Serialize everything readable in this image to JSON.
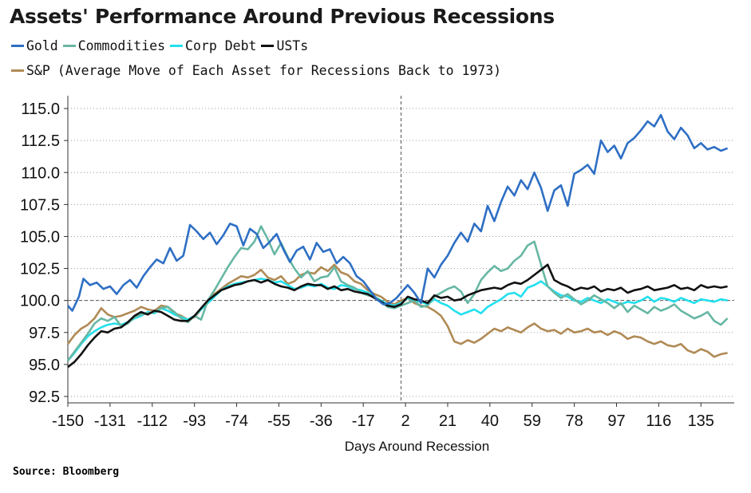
{
  "title": "Assets' Performance Around Previous Recessions",
  "source": "Source: Bloomberg",
  "legend_note": "(Average Move of Each Asset for Recessions Back to 1973)",
  "chart_data": {
    "type": "line",
    "title": "Assets' Performance Around Previous Recessions",
    "xlabel": "Days Around Recession",
    "ylabel": "",
    "xlim": [
      -150,
      150
    ],
    "ylim": [
      92.0,
      116.0
    ],
    "xticks": [
      -150,
      -131,
      -112,
      -93,
      -74,
      -55,
      -36,
      -17,
      2,
      21,
      40,
      59,
      78,
      97,
      116,
      135
    ],
    "yticks": [
      92.5,
      95.0,
      97.5,
      100.0,
      102.5,
      105.0,
      107.5,
      110.0,
      112.5,
      115.0
    ],
    "ytick_labels": [
      "92.5",
      "95.0",
      "97.5",
      "100.0",
      "102.5",
      "105.0",
      "107.5",
      "110.0",
      "112.5",
      "115.0"
    ],
    "reference_line_y": 100.0,
    "reference_line_x": 0,
    "grid": "horizontal dotted",
    "legend_position": "top-left",
    "series": [
      {
        "name": "Gold",
        "color": "#2e6fc4",
        "x": [
          -150,
          -148,
          -145,
          -143,
          -140,
          -137,
          -134,
          -131,
          -128,
          -125,
          -122,
          -119,
          -116,
          -113,
          -110,
          -107,
          -104,
          -101,
          -98,
          -95,
          -92,
          -89,
          -86,
          -83,
          -80,
          -77,
          -74,
          -71,
          -68,
          -65,
          -62,
          -59,
          -56,
          -53,
          -50,
          -47,
          -44,
          -41,
          -38,
          -35,
          -32,
          -29,
          -26,
          -23,
          -20,
          -17,
          -14,
          -11,
          -8,
          -5,
          -2,
          0,
          3,
          6,
          9,
          12,
          15,
          18,
          21,
          24,
          27,
          30,
          33,
          36,
          39,
          42,
          45,
          48,
          51,
          54,
          57,
          60,
          63,
          66,
          69,
          72,
          75,
          78,
          81,
          84,
          87,
          90,
          93,
          96,
          99,
          102,
          105,
          108,
          111,
          114,
          117,
          120,
          123,
          126,
          129,
          132,
          135,
          138,
          141,
          144,
          147
        ],
        "y": [
          99.6,
          99.2,
          100.3,
          101.7,
          101.2,
          101.4,
          100.9,
          101.1,
          100.5,
          101.2,
          101.6,
          101.0,
          101.9,
          102.6,
          103.2,
          102.9,
          104.1,
          103.1,
          103.5,
          105.9,
          105.4,
          104.8,
          105.3,
          104.4,
          105.1,
          106.0,
          105.8,
          104.3,
          105.6,
          105.2,
          104.1,
          104.6,
          105.2,
          104.0,
          103.0,
          103.9,
          104.2,
          103.2,
          104.5,
          103.8,
          104.0,
          102.9,
          103.4,
          102.9,
          101.9,
          101.5,
          100.8,
          100.1,
          99.7,
          99.8,
          100.2,
          100.6,
          101.2,
          100.6,
          99.8,
          102.5,
          101.8,
          102.8,
          103.5,
          104.5,
          105.3,
          104.6,
          106.0,
          105.4,
          107.4,
          106.2,
          107.7,
          108.9,
          108.2,
          109.4,
          108.7,
          110.0,
          108.8,
          107.0,
          108.6,
          109.0,
          107.4,
          109.9,
          110.2,
          110.6,
          109.9,
          112.5,
          111.6,
          112.1,
          111.1,
          112.3,
          112.7,
          113.3,
          114.0,
          113.6,
          114.5,
          113.2,
          112.6,
          113.5,
          112.9,
          111.9,
          112.3,
          111.8,
          112.0,
          111.7,
          111.9
        ]
      },
      {
        "name": "Commodities",
        "color": "#67b7a4",
        "x": [
          -150,
          -147,
          -144,
          -141,
          -138,
          -135,
          -132,
          -129,
          -126,
          -123,
          -120,
          -117,
          -114,
          -111,
          -108,
          -105,
          -102,
          -99,
          -96,
          -93,
          -90,
          -87,
          -84,
          -81,
          -78,
          -75,
          -72,
          -69,
          -66,
          -63,
          -60,
          -57,
          -54,
          -51,
          -48,
          -45,
          -42,
          -39,
          -36,
          -33,
          -30,
          -27,
          -24,
          -21,
          -18,
          -15,
          -12,
          -9,
          -6,
          -3,
          0,
          3,
          6,
          9,
          12,
          15,
          18,
          21,
          24,
          27,
          30,
          33,
          36,
          39,
          42,
          45,
          48,
          51,
          54,
          57,
          60,
          63,
          66,
          69,
          72,
          75,
          78,
          81,
          84,
          87,
          90,
          93,
          96,
          99,
          102,
          105,
          108,
          111,
          114,
          117,
          120,
          123,
          126,
          129,
          132,
          135,
          138,
          141,
          144,
          147
        ],
        "y": [
          95.3,
          96.0,
          96.7,
          97.4,
          98.2,
          98.6,
          98.4,
          98.7,
          98.0,
          98.2,
          98.7,
          98.9,
          99.0,
          99.1,
          99.4,
          99.5,
          99.1,
          98.6,
          98.3,
          98.8,
          98.5,
          100.0,
          100.8,
          101.7,
          102.6,
          103.4,
          104.1,
          104.0,
          104.6,
          105.8,
          104.8,
          103.6,
          104.5,
          103.4,
          102.5,
          101.8,
          102.3,
          101.5,
          101.8,
          101.9,
          102.6,
          101.5,
          101.2,
          101.0,
          100.6,
          100.4,
          100.3,
          99.9,
          99.5,
          99.4,
          99.6,
          99.8,
          100.0,
          99.5,
          99.6,
          100.3,
          100.6,
          100.9,
          101.1,
          100.7,
          99.8,
          100.5,
          101.6,
          102.2,
          102.7,
          102.3,
          102.5,
          103.1,
          103.5,
          104.3,
          104.6,
          102.8,
          101.1,
          100.6,
          100.2,
          100.5,
          100.1,
          99.7,
          100.0,
          100.4,
          100.1,
          99.8,
          99.4,
          99.8,
          99.1,
          99.6,
          99.3,
          99.0,
          99.5,
          99.2,
          99.4,
          99.7,
          99.2,
          98.9,
          98.6,
          98.8,
          99.1,
          98.4,
          98.1,
          98.6
        ]
      },
      {
        "name": "Corp Debt",
        "color": "#22e0ee",
        "x": [
          -150,
          -147,
          -144,
          -141,
          -138,
          -135,
          -132,
          -129,
          -126,
          -123,
          -120,
          -117,
          -114,
          -111,
          -108,
          -105,
          -102,
          -99,
          -96,
          -93,
          -90,
          -87,
          -84,
          -81,
          -78,
          -75,
          -72,
          -69,
          -66,
          -63,
          -60,
          -57,
          -54,
          -51,
          -48,
          -45,
          -42,
          -39,
          -36,
          -33,
          -30,
          -27,
          -24,
          -21,
          -18,
          -15,
          -12,
          -9,
          -6,
          -3,
          0,
          3,
          6,
          9,
          12,
          15,
          18,
          21,
          24,
          27,
          30,
          33,
          36,
          39,
          42,
          45,
          48,
          51,
          54,
          57,
          60,
          63,
          66,
          69,
          72,
          75,
          78,
          81,
          84,
          87,
          90,
          93,
          96,
          99,
          102,
          105,
          108,
          111,
          114,
          117,
          120,
          123,
          126,
          129,
          132,
          135,
          138,
          141,
          144,
          147
        ],
        "y": [
          95.3,
          95.9,
          96.6,
          97.2,
          97.6,
          97.9,
          98.1,
          98.2,
          98.1,
          98.3,
          98.6,
          98.8,
          99.1,
          99.0,
          99.4,
          99.2,
          98.9,
          98.7,
          98.5,
          98.8,
          99.3,
          99.8,
          100.3,
          100.8,
          101.1,
          101.3,
          101.4,
          101.5,
          101.6,
          101.7,
          101.6,
          101.4,
          101.5,
          101.2,
          100.9,
          101.0,
          101.2,
          101.1,
          101.3,
          101.0,
          100.9,
          101.2,
          101.1,
          100.9,
          100.8,
          100.6,
          100.3,
          100.0,
          99.7,
          99.6,
          99.8,
          100.2,
          100.0,
          99.9,
          99.7,
          100.1,
          99.8,
          99.6,
          99.2,
          98.9,
          99.1,
          99.3,
          99.0,
          99.5,
          99.8,
          100.1,
          100.5,
          100.6,
          100.3,
          101.0,
          101.2,
          101.5,
          101.1,
          100.7,
          100.4,
          100.3,
          100.0,
          99.9,
          100.2,
          100.0,
          99.8,
          100.1,
          99.9,
          99.7,
          99.9,
          99.8,
          100.0,
          100.3,
          99.9,
          100.2,
          100.1,
          99.9,
          100.2,
          100.0,
          99.8,
          100.1,
          100.0,
          99.9,
          100.1,
          100.0
        ]
      },
      {
        "name": "USTs",
        "color": "#111111",
        "x": [
          -150,
          -147,
          -144,
          -141,
          -138,
          -135,
          -132,
          -129,
          -126,
          -123,
          -120,
          -117,
          -114,
          -111,
          -108,
          -105,
          -102,
          -99,
          -96,
          -93,
          -90,
          -87,
          -84,
          -81,
          -78,
          -75,
          -72,
          -69,
          -66,
          -63,
          -60,
          -57,
          -54,
          -51,
          -48,
          -45,
          -42,
          -39,
          -36,
          -33,
          -30,
          -27,
          -24,
          -21,
          -18,
          -15,
          -12,
          -9,
          -6,
          -3,
          0,
          3,
          6,
          9,
          12,
          15,
          18,
          21,
          24,
          27,
          30,
          33,
          36,
          39,
          42,
          45,
          48,
          51,
          54,
          57,
          60,
          63,
          66,
          69,
          72,
          75,
          78,
          81,
          84,
          87,
          90,
          93,
          96,
          99,
          102,
          105,
          108,
          111,
          114,
          117,
          120,
          123,
          126,
          129,
          132,
          135,
          138,
          141,
          144,
          147
        ],
        "y": [
          94.8,
          95.2,
          95.8,
          96.5,
          97.1,
          97.6,
          97.5,
          97.8,
          97.9,
          98.3,
          98.8,
          99.1,
          98.9,
          99.2,
          99.1,
          98.8,
          98.5,
          98.4,
          98.4,
          98.8,
          99.4,
          100.0,
          100.4,
          100.8,
          101.0,
          101.2,
          101.3,
          101.5,
          101.6,
          101.4,
          101.6,
          101.3,
          101.1,
          101.0,
          100.8,
          101.1,
          101.3,
          101.2,
          101.2,
          100.9,
          101.1,
          100.8,
          100.9,
          100.7,
          100.6,
          100.5,
          100.2,
          99.9,
          99.6,
          99.5,
          99.7,
          100.3,
          100.1,
          100.0,
          99.8,
          100.4,
          100.2,
          100.3,
          100.0,
          100.1,
          100.4,
          100.6,
          100.8,
          100.9,
          101.0,
          100.9,
          101.2,
          101.4,
          101.3,
          101.6,
          102.0,
          102.4,
          102.8,
          101.6,
          101.3,
          101.1,
          100.8,
          101.0,
          100.9,
          101.1,
          100.7,
          100.9,
          100.8,
          101.0,
          100.6,
          100.8,
          100.9,
          101.1,
          100.8,
          100.9,
          101.0,
          101.2,
          100.9,
          101.0,
          100.8,
          101.2,
          101.0,
          101.1,
          101.0,
          101.1
        ]
      },
      {
        "name": "S&P",
        "color": "#b08a55",
        "x": [
          -150,
          -147,
          -144,
          -141,
          -138,
          -135,
          -132,
          -129,
          -126,
          -123,
          -120,
          -117,
          -114,
          -111,
          -108,
          -105,
          -102,
          -99,
          -96,
          -93,
          -90,
          -87,
          -84,
          -81,
          -78,
          -75,
          -72,
          -69,
          -66,
          -63,
          -60,
          -57,
          -54,
          -51,
          -48,
          -45,
          -42,
          -39,
          -36,
          -33,
          -30,
          -27,
          -24,
          -21,
          -18,
          -15,
          -12,
          -9,
          -6,
          -3,
          0,
          3,
          6,
          9,
          12,
          15,
          18,
          21,
          24,
          27,
          30,
          33,
          36,
          39,
          42,
          45,
          48,
          51,
          54,
          57,
          60,
          63,
          66,
          69,
          72,
          75,
          78,
          81,
          84,
          87,
          90,
          93,
          96,
          99,
          102,
          105,
          108,
          111,
          114,
          117,
          120,
          123,
          126,
          129,
          132,
          135,
          138,
          141,
          144,
          147
        ],
        "y": [
          96.6,
          97.3,
          97.8,
          98.1,
          98.6,
          99.4,
          98.9,
          98.7,
          98.8,
          99.0,
          99.2,
          99.5,
          99.3,
          99.2,
          99.6,
          99.5,
          99.0,
          98.8,
          98.5,
          98.7,
          99.3,
          100.0,
          100.5,
          100.9,
          101.3,
          101.6,
          101.9,
          101.8,
          102.0,
          102.4,
          101.8,
          101.6,
          101.9,
          101.3,
          101.5,
          102.0,
          102.2,
          102.1,
          102.6,
          102.3,
          102.8,
          102.2,
          102.0,
          101.5,
          101.3,
          100.8,
          100.5,
          100.3,
          99.9,
          99.7,
          100.0,
          100.2,
          99.8,
          99.6,
          99.5,
          99.2,
          98.8,
          98.0,
          96.8,
          96.6,
          96.9,
          96.7,
          97.0,
          97.4,
          97.8,
          97.6,
          97.9,
          97.7,
          97.5,
          97.9,
          98.2,
          97.8,
          97.6,
          97.7,
          97.4,
          97.8,
          97.5,
          97.6,
          97.8,
          97.5,
          97.6,
          97.3,
          97.6,
          97.4,
          97.0,
          97.2,
          97.1,
          96.8,
          96.6,
          96.8,
          96.5,
          96.4,
          96.6,
          96.1,
          95.9,
          96.2,
          96.0,
          95.6,
          95.8,
          95.9
        ]
      }
    ]
  }
}
